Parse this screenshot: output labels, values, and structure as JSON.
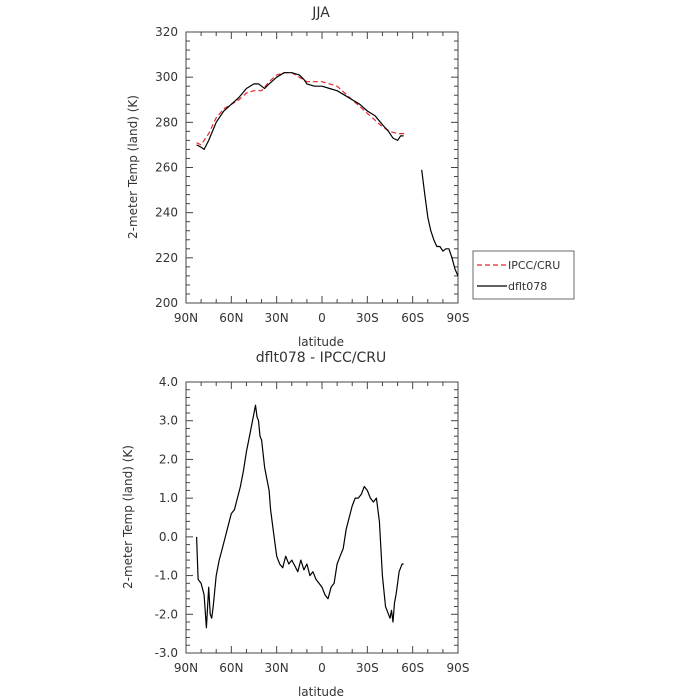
{
  "chart_data": [
    {
      "type": "line",
      "title": "JJA",
      "xlabel": "latitude",
      "ylabel": "2-meter Temp (land) (K)",
      "xlim": [
        90,
        -90
      ],
      "ylim": [
        200,
        320
      ],
      "xticks": [
        90,
        60,
        30,
        0,
        -30,
        -60,
        -90
      ],
      "xtick_labels": [
        "90N",
        "60N",
        "30N",
        "0",
        "30S",
        "60S",
        "90S"
      ],
      "yticks": [
        200,
        220,
        240,
        260,
        280,
        300,
        320
      ],
      "ytick_labels": [
        "200",
        "220",
        "240",
        "260",
        "280",
        "300",
        "320"
      ],
      "legend": "right",
      "series": [
        {
          "name": "IPCC/CRU",
          "color": "#e8262a",
          "dash": "dashed",
          "x": [
            83,
            80,
            75,
            70,
            65,
            60,
            55,
            50,
            45,
            40,
            35,
            30,
            25,
            20,
            15,
            10,
            5,
            0,
            -5,
            -10,
            -15,
            -20,
            -25,
            -30,
            -35,
            -40,
            -45,
            -50,
            -55
          ],
          "y": [
            271,
            270,
            275,
            282,
            286,
            288,
            290,
            293,
            294,
            294,
            298,
            301,
            302,
            302,
            300,
            298,
            298,
            298,
            297,
            296,
            293,
            290,
            287,
            284,
            281,
            278,
            276,
            275,
            275
          ]
        },
        {
          "name": "dflt078",
          "color": "#000000",
          "dash": "solid",
          "segments": [
            {
              "x": [
                83,
                80,
                78,
                75,
                70,
                65,
                60,
                55,
                50,
                45,
                42,
                40,
                38,
                35,
                30,
                25,
                20,
                15,
                12,
                10,
                5,
                0,
                -5,
                -10,
                -15,
                -20,
                -25,
                -30,
                -35,
                -40,
                -44,
                -47,
                -50,
                -52,
                -54
              ],
              "y": [
                270,
                269,
                268,
                272,
                280,
                285,
                288,
                291,
                295,
                297,
                297,
                296,
                295,
                297,
                300,
                302,
                302,
                301,
                299,
                297,
                296,
                296,
                295,
                294,
                292,
                290,
                288,
                285,
                283,
                279,
                276,
                273,
                272,
                274,
                274
              ]
            },
            {
              "x": [
                -66,
                -68,
                -70,
                -72,
                -74,
                -76,
                -78,
                -80,
                -82,
                -84,
                -86,
                -88,
                -90
              ],
              "y": [
                259,
                248,
                238,
                232,
                228,
                225,
                225,
                223,
                224,
                224,
                220,
                215,
                212
              ]
            }
          ]
        }
      ]
    },
    {
      "type": "line",
      "title": "dflt078 - IPCC/CRU",
      "xlabel": "latitude",
      "ylabel": "2-meter Temp (land) (K)",
      "xlim": [
        90,
        -90
      ],
      "ylim": [
        -3.0,
        4.0
      ],
      "xticks": [
        90,
        60,
        30,
        0,
        -30,
        -60,
        -90
      ],
      "xtick_labels": [
        "90N",
        "60N",
        "30N",
        "0",
        "30S",
        "60S",
        "90S"
      ],
      "yticks": [
        -3,
        -2,
        -1,
        0,
        1,
        2,
        3,
        4
      ],
      "ytick_labels": [
        "-3.0",
        "-2.0",
        "-1.0",
        "0.0",
        "1.0",
        "2.0",
        "3.0",
        "4.0"
      ],
      "series": [
        {
          "color": "#000000",
          "dash": "solid",
          "x": [
            83,
            82,
            80,
            78,
            76.5,
            75,
            74,
            73,
            72,
            70,
            68,
            66,
            64,
            62,
            60,
            58,
            56,
            54,
            52,
            50,
            48,
            46,
            45,
            44,
            43,
            42,
            41,
            40,
            38,
            36,
            35,
            34,
            32,
            30,
            28,
            26,
            24,
            22,
            20,
            18,
            16,
            14,
            12,
            10,
            8,
            6,
            4,
            2,
            0,
            -2,
            -4,
            -6,
            -8,
            -10,
            -12,
            -14,
            -16,
            -18,
            -20,
            -22,
            -24,
            -26,
            -28,
            -30,
            -32,
            -34,
            -36,
            -38,
            -40,
            -42,
            -44,
            -45,
            -46,
            -47,
            -48,
            -49,
            -50,
            -51,
            -52,
            -53,
            -54
          ],
          "y": [
            0.0,
            -1.1,
            -1.2,
            -1.5,
            -2.35,
            -1.3,
            -2.0,
            -2.1,
            -1.8,
            -1.0,
            -0.6,
            -0.3,
            0.0,
            0.3,
            0.6,
            0.7,
            1.0,
            1.3,
            1.7,
            2.2,
            2.6,
            3.0,
            3.2,
            3.4,
            3.1,
            3.0,
            2.6,
            2.5,
            1.8,
            1.4,
            1.2,
            0.7,
            0.1,
            -0.5,
            -0.7,
            -0.8,
            -0.5,
            -0.7,
            -0.6,
            -0.75,
            -0.9,
            -0.6,
            -0.85,
            -0.7,
            -1.0,
            -0.9,
            -1.1,
            -1.2,
            -1.3,
            -1.5,
            -1.6,
            -1.3,
            -1.2,
            -0.7,
            -0.5,
            -0.3,
            0.2,
            0.5,
            0.8,
            1.0,
            1.0,
            1.1,
            1.3,
            1.2,
            1.0,
            0.9,
            1.0,
            0.4,
            -1.0,
            -1.8,
            -2.0,
            -2.1,
            -1.9,
            -2.2,
            -1.7,
            -1.5,
            -1.2,
            -0.9,
            -0.8,
            -0.7,
            -0.7
          ]
        }
      ]
    }
  ]
}
